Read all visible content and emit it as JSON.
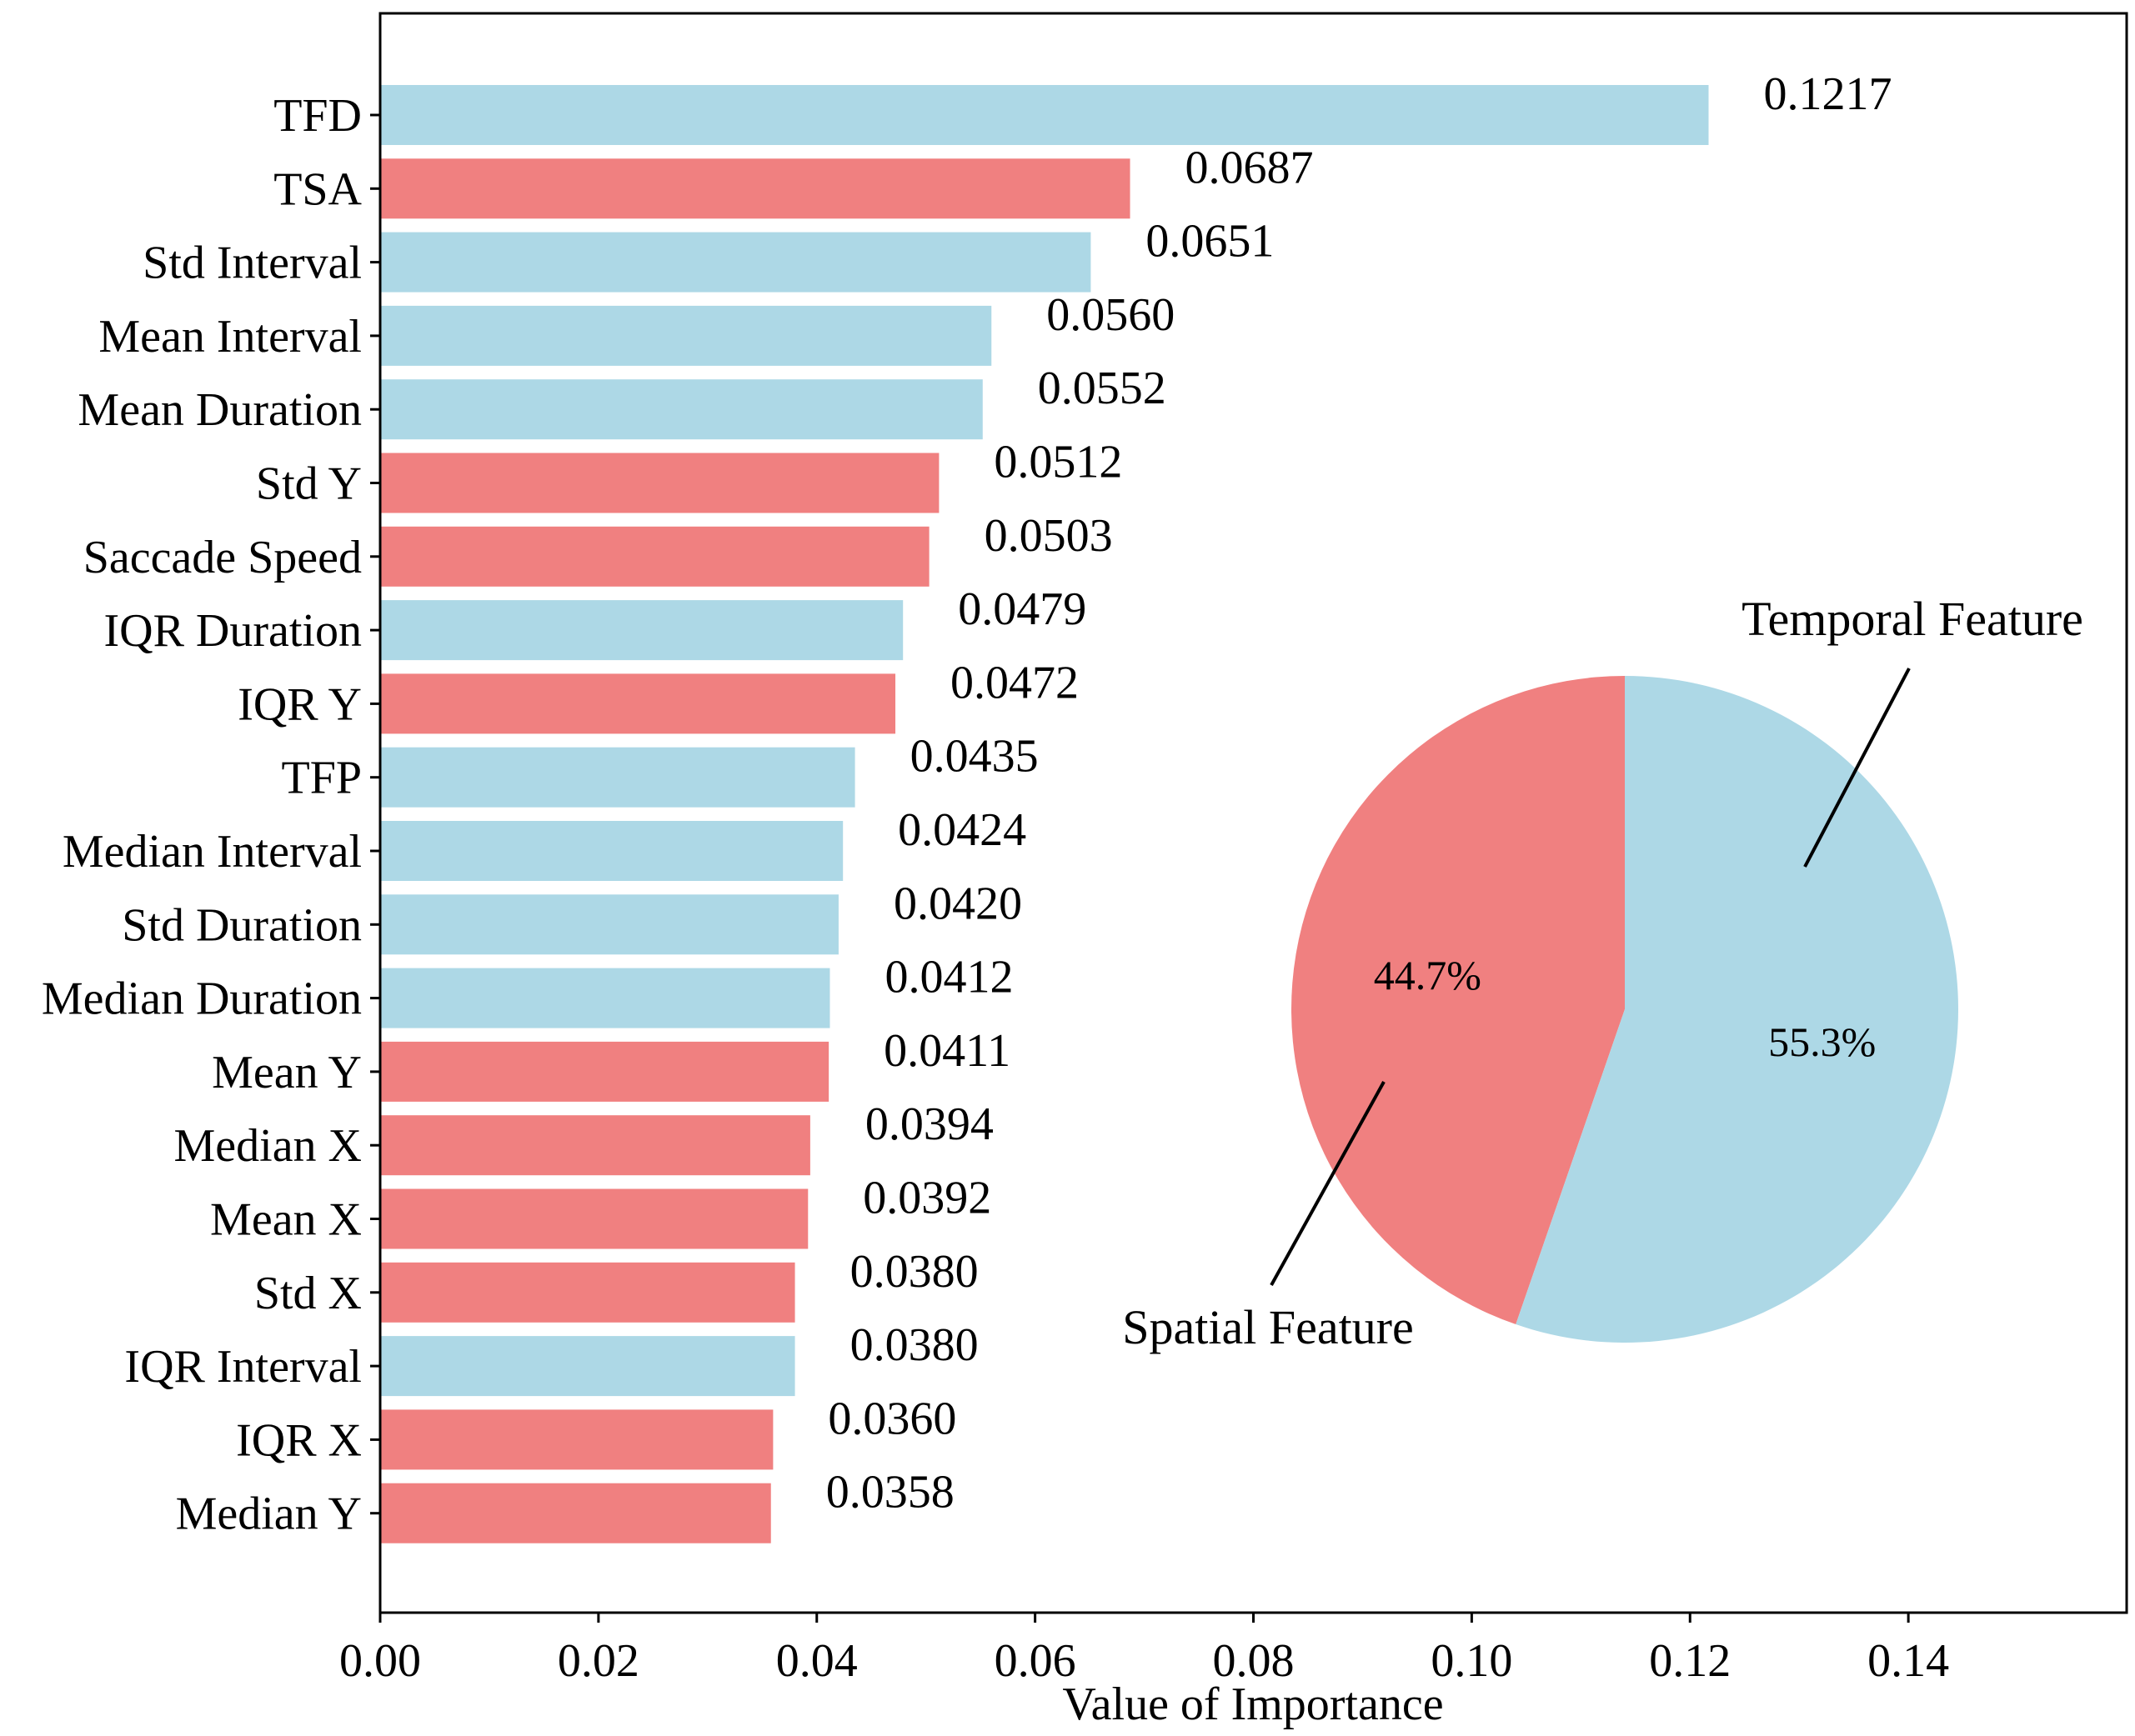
{
  "chart_data": [
    {
      "type": "bar",
      "orientation": "horizontal",
      "categories": [
        "TFD",
        "TSA",
        "Std Interval",
        "Mean Interval",
        "Mean Duration",
        "Std Y",
        "Saccade Speed",
        "IQR Duration",
        "IQR Y",
        "TFP",
        "Median Interval",
        "Std Duration",
        "Median Duration",
        "Mean Y",
        "Median X",
        "Mean X",
        "Std X",
        "IQR Interval",
        "IQR X",
        "Median Y"
      ],
      "values": [
        0.1217,
        0.0687,
        0.0651,
        0.056,
        0.0552,
        0.0512,
        0.0503,
        0.0479,
        0.0472,
        0.0435,
        0.0424,
        0.042,
        0.0412,
        0.0411,
        0.0394,
        0.0392,
        0.038,
        0.038,
        0.036,
        0.0358
      ],
      "value_labels": [
        "0.1217",
        "0.0687",
        "0.0651",
        "0.0560",
        "0.0552",
        "0.0512",
        "0.0503",
        "0.0479",
        "0.0472",
        "0.0435",
        "0.0424",
        "0.0420",
        "0.0412",
        "0.0411",
        "0.0394",
        "0.0392",
        "0.0380",
        "0.0380",
        "0.0360",
        "0.0358"
      ],
      "groups": [
        "temporal",
        "spatial",
        "temporal",
        "temporal",
        "temporal",
        "spatial",
        "spatial",
        "temporal",
        "spatial",
        "temporal",
        "temporal",
        "temporal",
        "temporal",
        "spatial",
        "spatial",
        "spatial",
        "spatial",
        "temporal",
        "spatial",
        "spatial"
      ],
      "group_colors": {
        "temporal": "#ADD8E6",
        "spatial": "#F08080"
      },
      "xlabel": "Value of Importance",
      "ylabel": "",
      "title": "",
      "xlim": [
        0,
        0.16
      ],
      "xticks": [
        0.0,
        0.02,
        0.04,
        0.06,
        0.08,
        0.1,
        0.12,
        0.14
      ],
      "xtick_labels": [
        "0.00",
        "0.02",
        "0.04",
        "0.06",
        "0.08",
        "0.10",
        "0.12",
        "0.14"
      ],
      "grid": false
    },
    {
      "type": "pie",
      "labels": [
        "Spatial Feature",
        "Temporal Feature"
      ],
      "values": [
        44.7,
        55.3
      ],
      "pct_labels": [
        "44.7%",
        "55.3%"
      ],
      "colors": [
        "#F08080",
        "#ADD8E6"
      ],
      "start_angle_deg": 90,
      "direction": "counterclockwise"
    }
  ]
}
